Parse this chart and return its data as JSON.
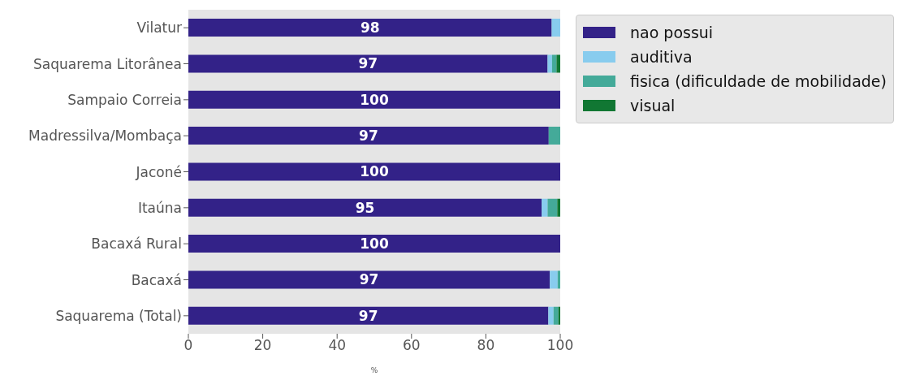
{
  "chart_data": {
    "type": "bar",
    "orientation": "horizontal",
    "stacked": true,
    "xlabel": "%",
    "categories": [
      "Vilatur",
      "Saquarema Litorânea",
      "Sampaio Correia",
      "Madressilva/Mombaça",
      "Jaconé",
      "Itaúna",
      "Bacaxá Rural",
      "Bacaxá",
      "Saquarema (Total)"
    ],
    "series": [
      {
        "name": "nao possui",
        "color": "#332288",
        "values": [
          97.7,
          96.6,
          100,
          96.9,
          100,
          95.0,
          100,
          97.2,
          96.8
        ],
        "value_labels": [
          "98",
          "97",
          "100",
          "97",
          "100",
          "95",
          "100",
          "97",
          "97"
        ]
      },
      {
        "name": "auditiva",
        "color": "#88ccee",
        "values": [
          2.3,
          1.2,
          0,
          0,
          0,
          1.6,
          0,
          2.1,
          1.4
        ]
      },
      {
        "name": "fisica (dificuldade de mobilidade)",
        "color": "#44aa99",
        "values": [
          0,
          1.2,
          0,
          3.1,
          0,
          2.6,
          0,
          0.7,
          1.3
        ]
      },
      {
        "name": "visual",
        "color": "#117733",
        "values": [
          0,
          1.0,
          0,
          0,
          0,
          0.8,
          0,
          0,
          0.5
        ]
      }
    ],
    "xlim": [
      0,
      100
    ],
    "xticks": [
      0,
      20,
      40,
      60,
      80,
      100
    ],
    "grid": false,
    "legend": "top right"
  }
}
